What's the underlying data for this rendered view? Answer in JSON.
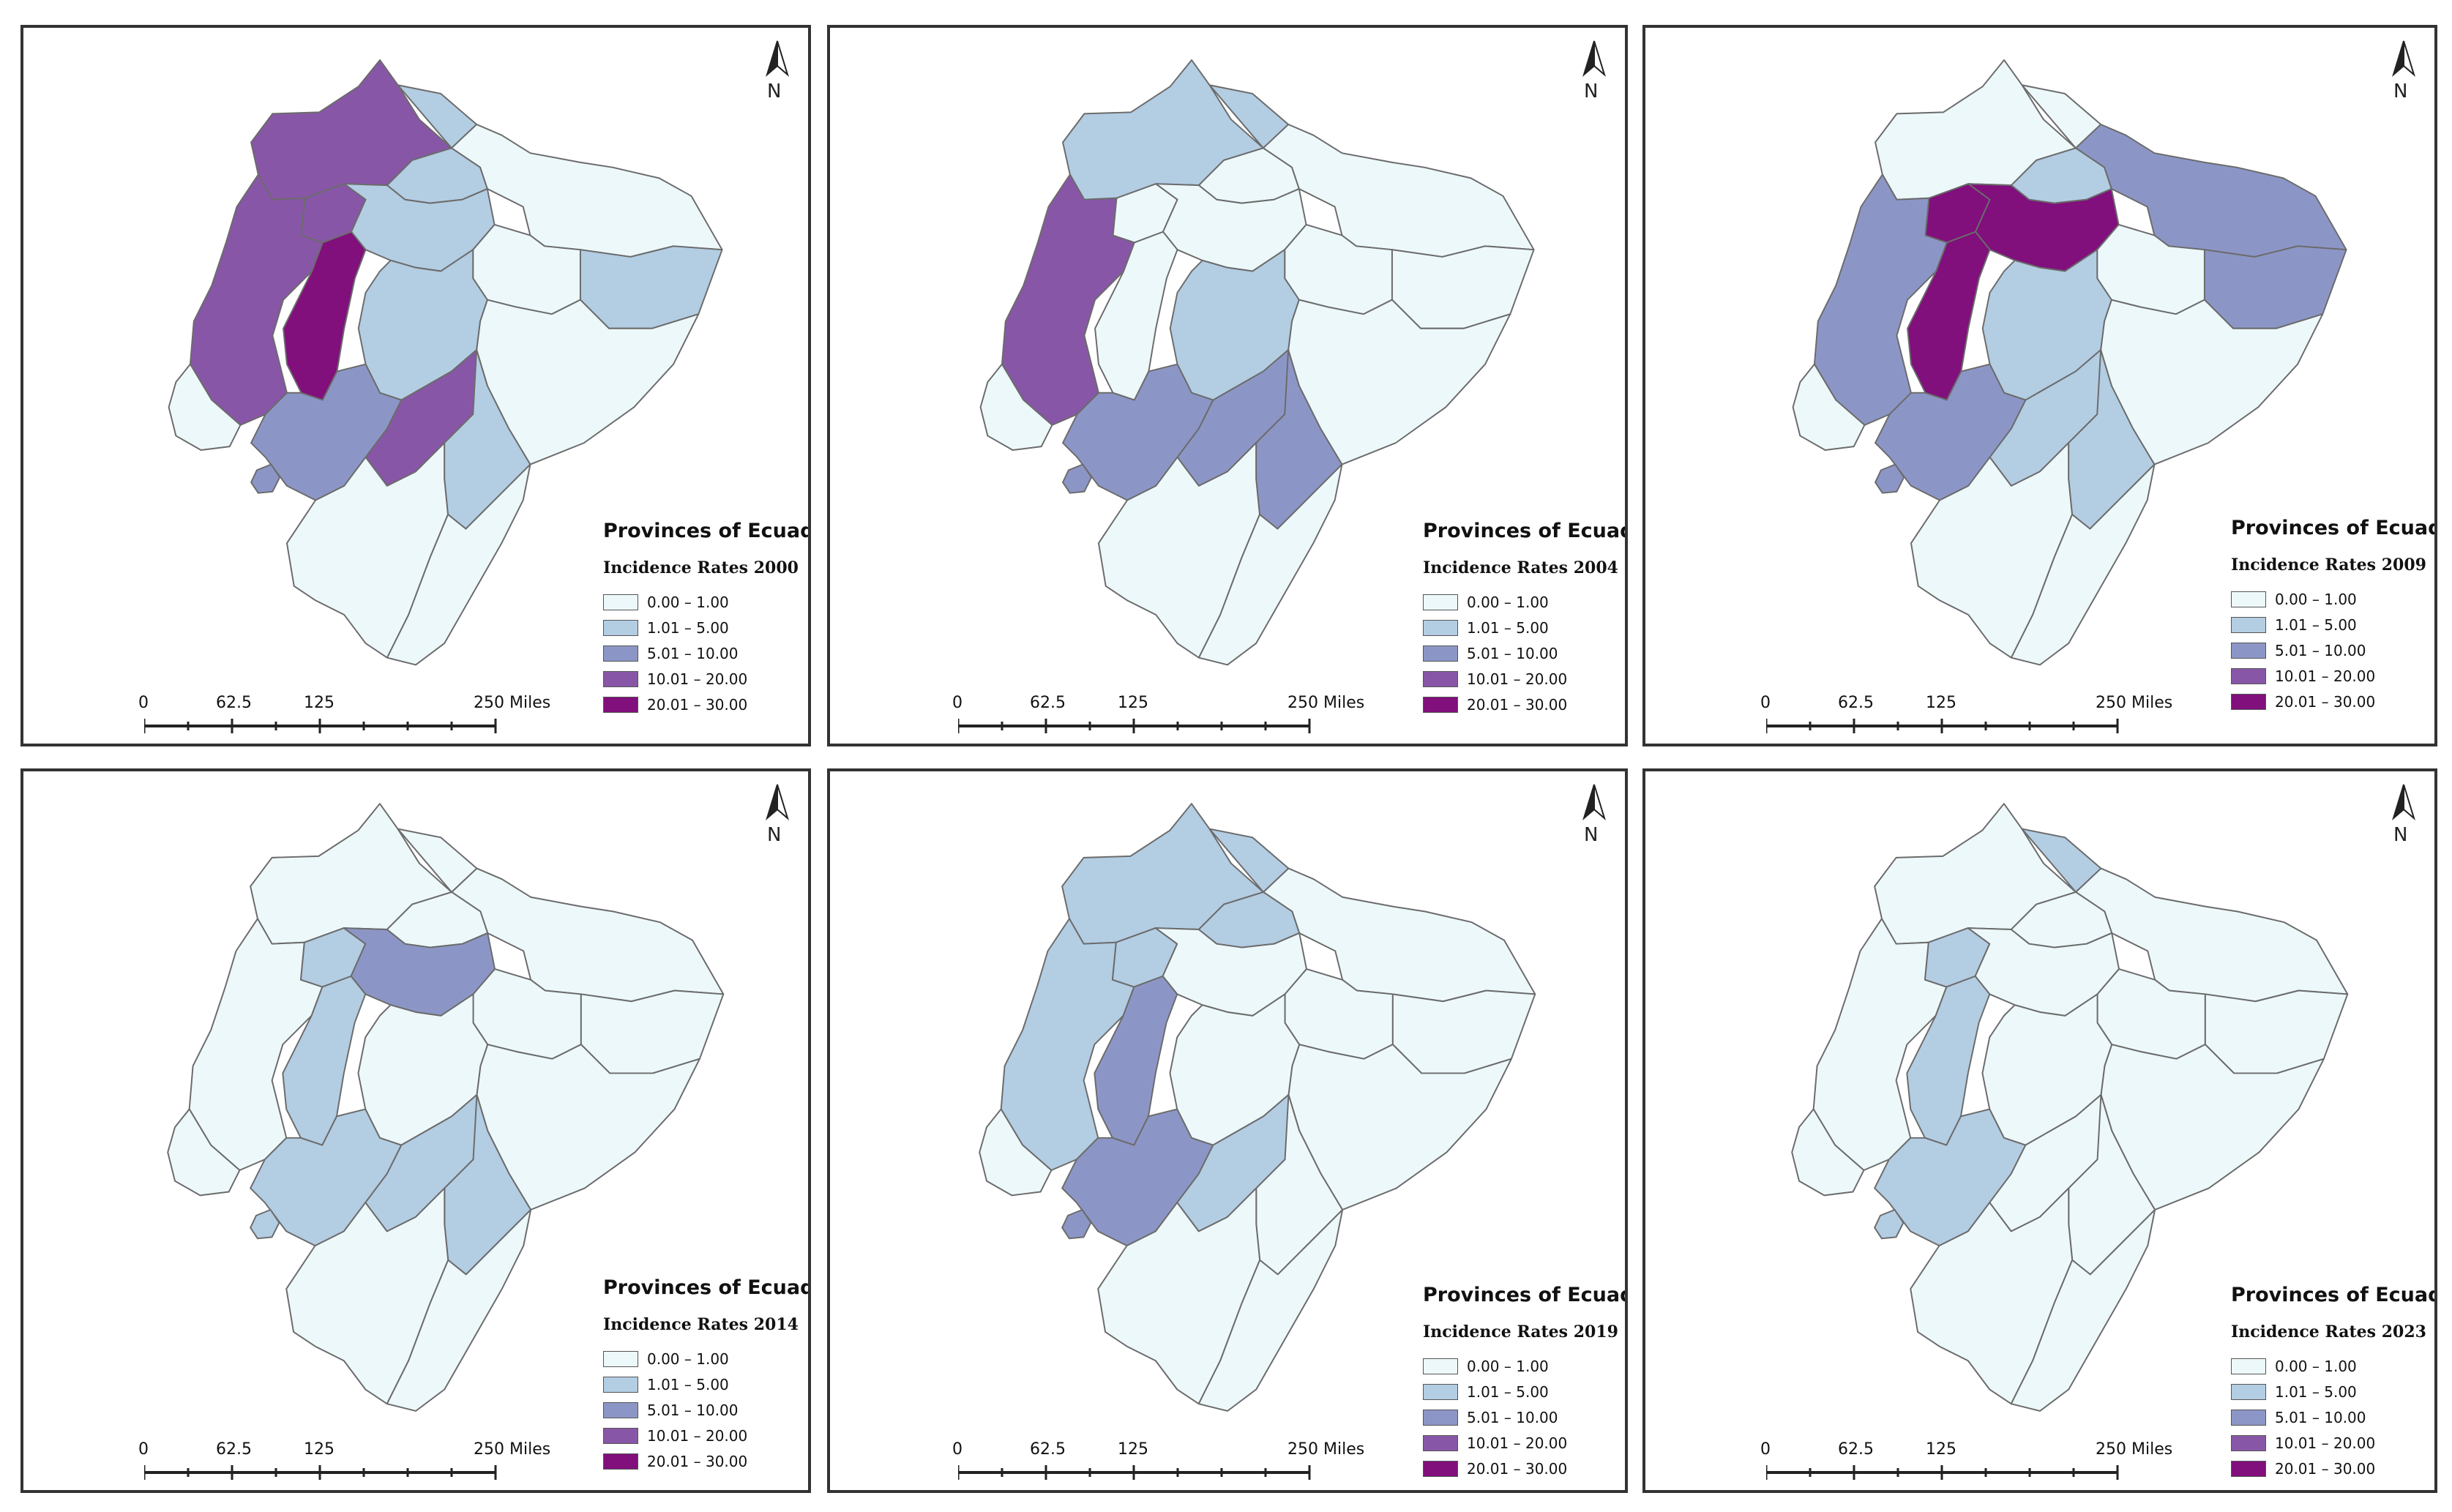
{
  "figure": {
    "panels": [
      {
        "id": "p2000",
        "legend_title": "Provinces of Ecuador",
        "legend_subtitle": "Incidence Rates 2000",
        "fills": {
          "A": "c3",
          "B": "c1",
          "C": "c0",
          "D": "c1",
          "E": "c3",
          "F": "c1",
          "G": "c3",
          "H": "c4",
          "I": "c0",
          "J": "c1",
          "K": "c0",
          "L": "c1",
          "M": "c2",
          "N": "c3",
          "O": "c1",
          "P": "c0",
          "Q": "c0",
          "R": "c0"
        }
      },
      {
        "id": "p2004",
        "legend_title": "Provinces of Ecuador",
        "legend_subtitle": "Incidence Rates 2004",
        "fills": {
          "A": "c1",
          "B": "c1",
          "C": "c0",
          "D": "c0",
          "E": "c0",
          "F": "c0",
          "G": "c3",
          "H": "c0",
          "I": "c0",
          "J": "c0",
          "K": "c0",
          "L": "c1",
          "M": "c2",
          "N": "c2",
          "O": "c2",
          "P": "c0",
          "Q": "c0",
          "R": "c0"
        }
      },
      {
        "id": "p2009",
        "legend_title": "Provinces of Ecuador",
        "legend_subtitle": "Incidence Rates 2009",
        "fills": {
          "A": "c0",
          "B": "c0",
          "C": "c2",
          "D": "c1",
          "E": "c4",
          "F": "c4",
          "G": "c2",
          "H": "c4",
          "I": "c0",
          "J": "c2",
          "K": "c0",
          "L": "c1",
          "M": "c2",
          "N": "c1",
          "O": "c1",
          "P": "c0",
          "Q": "c0",
          "R": "c0"
        }
      },
      {
        "id": "p2014",
        "legend_title": "Provinces of Ecuador",
        "legend_subtitle": "Incidence Rates 2014",
        "fills": {
          "A": "c0",
          "B": "c0",
          "C": "c0",
          "D": "c0",
          "E": "c1",
          "F": "c2",
          "G": "c0",
          "H": "c1",
          "I": "c0",
          "J": "c0",
          "K": "c0",
          "L": "c0",
          "M": "c1",
          "N": "c1",
          "O": "c1",
          "P": "c0",
          "Q": "c0",
          "R": "c0"
        }
      },
      {
        "id": "p2019",
        "legend_title": "Provinces of Ecuador",
        "legend_subtitle": "Incidence Rates 2019",
        "fills": {
          "A": "c1",
          "B": "c1",
          "C": "c0",
          "D": "c1",
          "E": "c1",
          "F": "c0",
          "G": "c1",
          "H": "c2",
          "I": "c0",
          "J": "c0",
          "K": "c0",
          "L": "c0",
          "M": "c2",
          "N": "c1",
          "O": "c0",
          "P": "c0",
          "Q": "c0",
          "R": "c0"
        }
      },
      {
        "id": "p2023",
        "legend_title": "Provinces of Ecuador",
        "legend_subtitle": "Incidence Rates 2023",
        "fills": {
          "A": "c0",
          "B": "c1",
          "C": "c0",
          "D": "c0",
          "E": "c1",
          "F": "c0",
          "G": "c0",
          "H": "c1",
          "I": "c0",
          "J": "c0",
          "K": "c0",
          "L": "c0",
          "M": "c1",
          "N": "c0",
          "O": "c0",
          "P": "c0",
          "Q": "c0",
          "R": "c0"
        }
      }
    ],
    "legend_classes": [
      {
        "key": "c0",
        "label": "0.00 – 1.00",
        "color": "#edf8fb"
      },
      {
        "key": "c1",
        "label": "1.01 – 5.00",
        "color": "#b3cde3"
      },
      {
        "key": "c2",
        "label": "5.01 – 10.00",
        "color": "#8c96c6"
      },
      {
        "key": "c3",
        "label": "10.01 – 20.00",
        "color": "#8856a7"
      },
      {
        "key": "c4",
        "label": "20.01 – 30.00",
        "color": "#810f7c"
      }
    ],
    "scalebar": {
      "labels": [
        "0",
        "62.5",
        "125",
        "250 Miles"
      ]
    },
    "north_arrow": {
      "letter": "N"
    }
  }
}
